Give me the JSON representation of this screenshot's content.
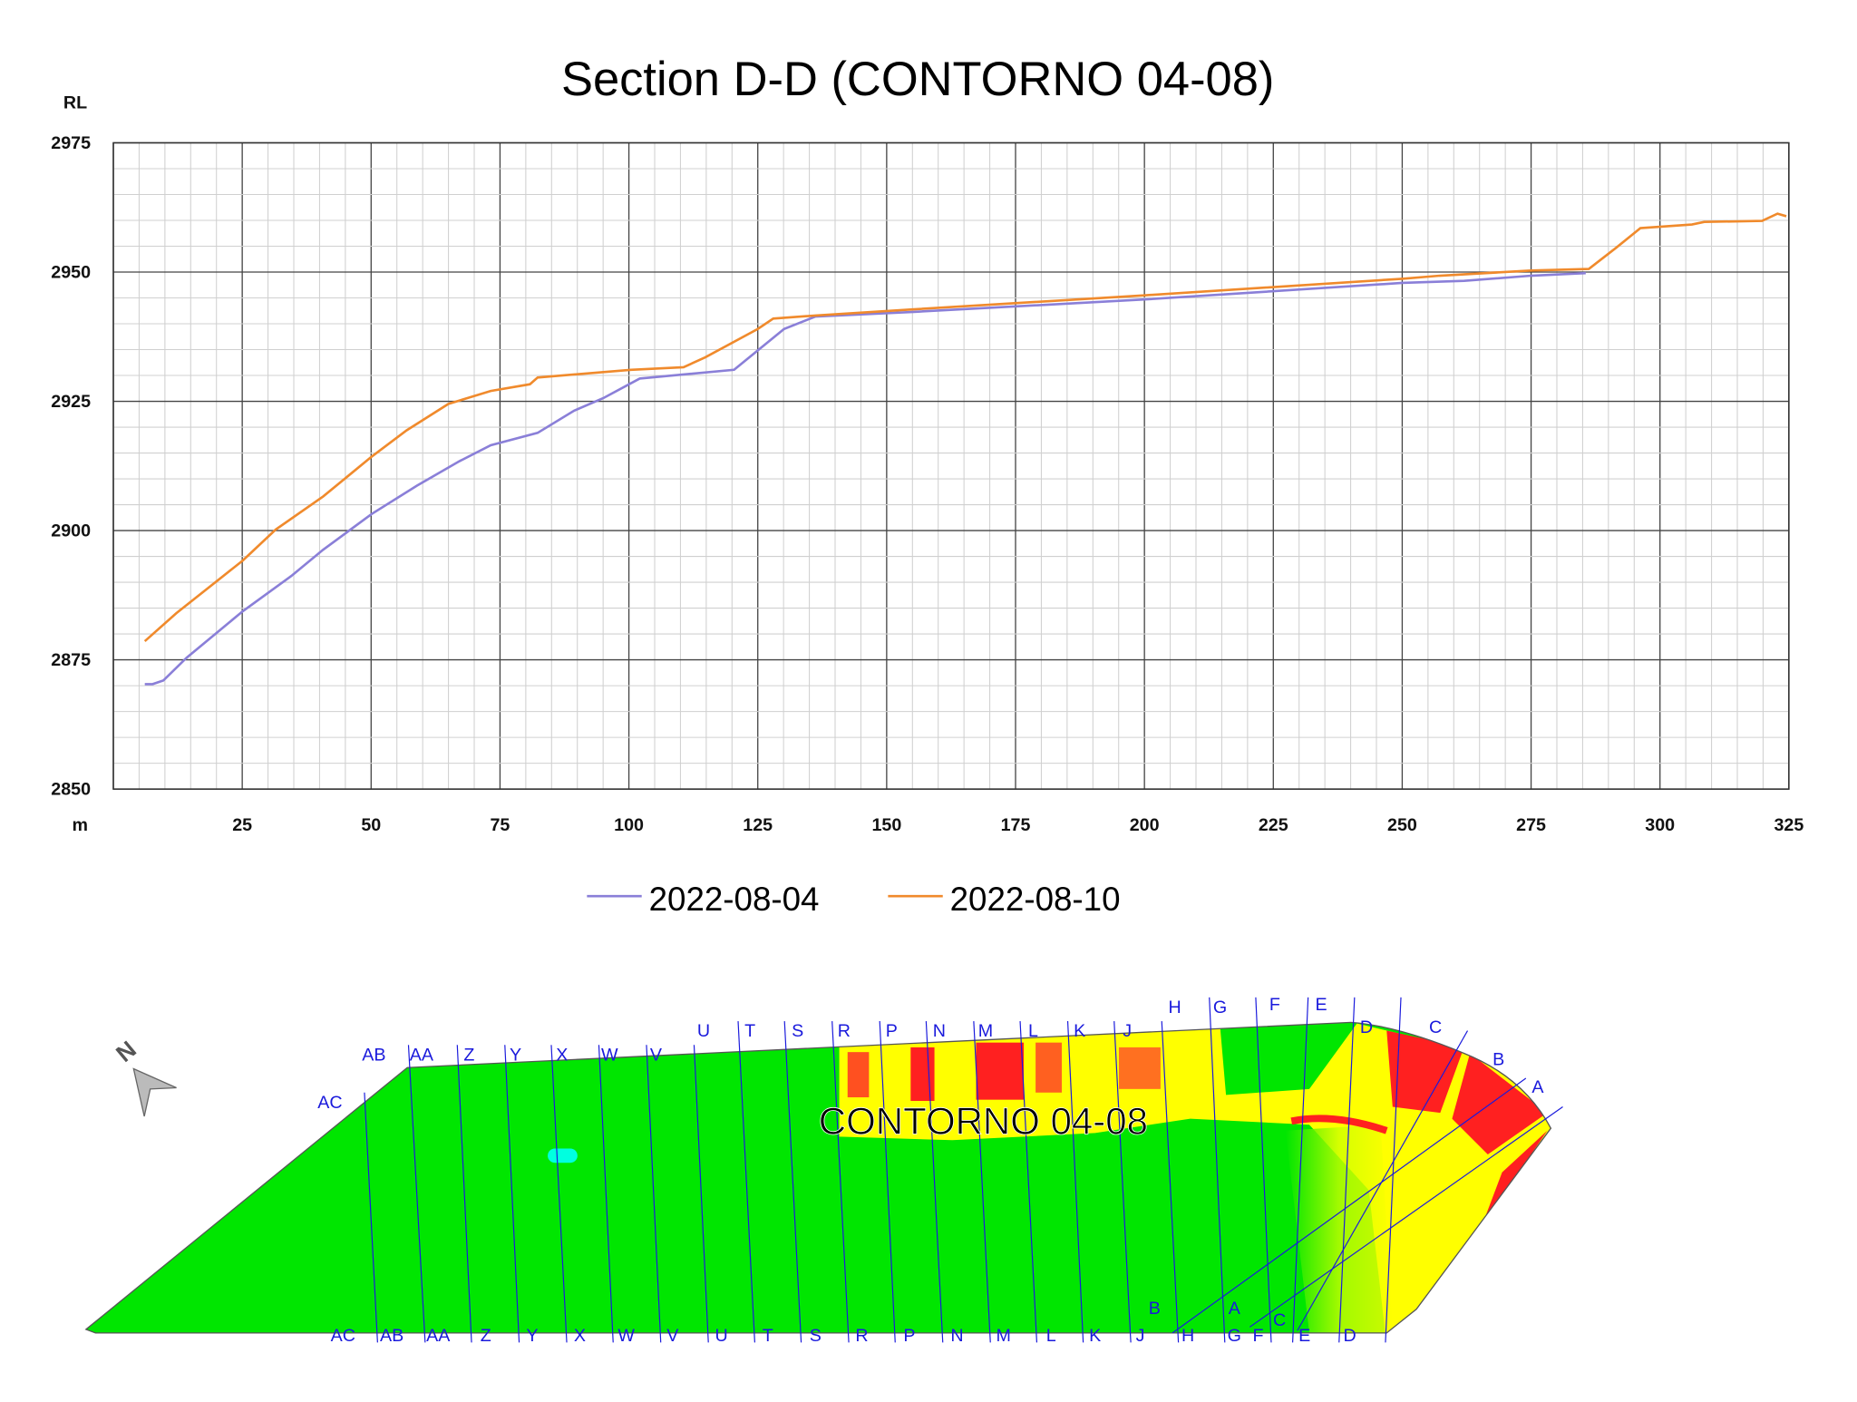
{
  "chart_data": {
    "type": "line",
    "title": "Section D-D (CONTORNO 04-08)",
    "xlabel": "m",
    "ylabel": "RL",
    "xlim": [
      0,
      325
    ],
    "ylim": [
      2850,
      2975
    ],
    "x_ticks": [
      "25",
      "50",
      "75",
      "100",
      "125",
      "150",
      "175",
      "200",
      "225",
      "250",
      "275",
      "300",
      "325"
    ],
    "y_ticks": [
      "2975",
      "2950",
      "2925",
      "2900",
      "2875",
      "2850"
    ],
    "grid": true,
    "legend_position": "bottom",
    "series": [
      {
        "name": "2022-08-04",
        "color": "#8a7fd8",
        "points": [
          [
            6.1,
            2870.3
          ],
          [
            7.6,
            2870.3
          ],
          [
            9.7,
            2871.0
          ],
          [
            14.2,
            2875.4
          ],
          [
            25.1,
            2884.4
          ],
          [
            34.5,
            2891.2
          ],
          [
            40.7,
            2896.3
          ],
          [
            50.1,
            2903.2
          ],
          [
            58.9,
            2908.7
          ],
          [
            67.1,
            2913.4
          ],
          [
            73.2,
            2916.5
          ],
          [
            82.3,
            2918.9
          ],
          [
            89.4,
            2923.2
          ],
          [
            95.0,
            2925.6
          ],
          [
            102.1,
            2929.4
          ],
          [
            120.4,
            2931.1
          ],
          [
            130.1,
            2939.0
          ],
          [
            136.2,
            2941.4
          ],
          [
            155.3,
            2942.3
          ],
          [
            200,
            2944.7
          ],
          [
            250,
            2947.9
          ],
          [
            262,
            2948.3
          ],
          [
            275,
            2949.3
          ],
          [
            285.6,
            2949.8
          ]
        ]
      },
      {
        "name": "2022-08-10",
        "color": "#f08a2c",
        "points": [
          [
            6.1,
            2878.6
          ],
          [
            12.2,
            2884.0
          ],
          [
            25.1,
            2894.2
          ],
          [
            31.5,
            2900.2
          ],
          [
            40.7,
            2906.6
          ],
          [
            50.1,
            2914.3
          ],
          [
            56.9,
            2919.4
          ],
          [
            65.0,
            2924.5
          ],
          [
            73.2,
            2927.0
          ],
          [
            80.8,
            2928.3
          ],
          [
            82.3,
            2929.6
          ],
          [
            100.4,
            2931.1
          ],
          [
            110.6,
            2931.6
          ],
          [
            114.8,
            2933.5
          ],
          [
            125.0,
            2939.0
          ],
          [
            128.0,
            2941.0
          ],
          [
            136.2,
            2941.6
          ],
          [
            155.3,
            2942.8
          ],
          [
            200,
            2945.5
          ],
          [
            250,
            2948.7
          ],
          [
            257.3,
            2949.3
          ],
          [
            275,
            2950.3
          ],
          [
            286.2,
            2950.6
          ],
          [
            291.5,
            2954.7
          ],
          [
            296.2,
            2958.5
          ],
          [
            306.2,
            2959.2
          ],
          [
            308.6,
            2959.7
          ],
          [
            319.8,
            2959.9
          ],
          [
            322.8,
            2961.3
          ],
          [
            324.5,
            2960.8
          ]
        ]
      }
    ]
  },
  "map": {
    "title": "CONTORNO 04-08",
    "north_label": "N",
    "top_labels": [
      "AC",
      "AB",
      "AA",
      "Z",
      "Y",
      "X",
      "W",
      "V",
      "U",
      "T",
      "S",
      "R",
      "P",
      "N",
      "M",
      "L",
      "K",
      "J",
      "H",
      "G",
      "F",
      "E",
      "D",
      "C",
      "B",
      "A"
    ],
    "bottom_labels": [
      "AC",
      "AB",
      "AA",
      "Z",
      "Y",
      "X",
      "W",
      "V",
      "U",
      "T",
      "S",
      "R",
      "P",
      "N",
      "M",
      "L",
      "K",
      "J",
      "H",
      "G",
      "F",
      "E",
      "D"
    ],
    "diagonal_labels": [
      "B",
      "A",
      "C"
    ],
    "colors": {
      "low": "#00e600",
      "mid": "#ffff00",
      "high": "#ff1a1a",
      "section_line": "#1a1adc"
    }
  }
}
